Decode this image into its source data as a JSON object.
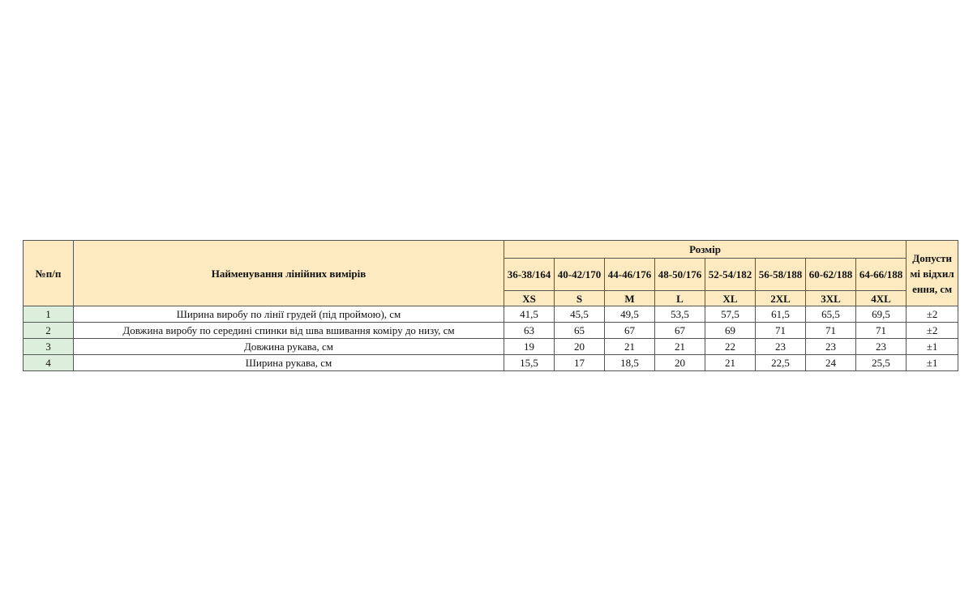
{
  "table": {
    "header": {
      "num": "№п/п",
      "name": "Найменування лінійних вимірів",
      "size_group": "Розмір",
      "tolerance": "Допустимі відхилення, см",
      "size_ranges": [
        "36-38/164",
        "40-42/170",
        "44-46/176",
        "48-50/176",
        "52-54/182",
        "56-58/188",
        "60-62/188",
        "64-66/188"
      ],
      "size_labels": [
        "XS",
        "S",
        "M",
        "L",
        "XL",
        "2XL",
        "3XL",
        "4XL"
      ]
    },
    "rows": [
      {
        "num": "1",
        "name": "Ширина виробу по лінії грудей (під проймою), см",
        "values": [
          "41,5",
          "45,5",
          "49,5",
          "53,5",
          "57,5",
          "61,5",
          "65,5",
          "69,5"
        ],
        "tolerance": "±2"
      },
      {
        "num": "2",
        "name": "Довжина виробу по середині спинки від шва вшивання коміру до низу, см",
        "values": [
          "63",
          "65",
          "67",
          "67",
          "69",
          "71",
          "71",
          "71"
        ],
        "tolerance": "±2"
      },
      {
        "num": "3",
        "name": "Довжина рукава, см",
        "values": [
          "19",
          "20",
          "21",
          "21",
          "22",
          "23",
          "23",
          "23"
        ],
        "tolerance": "±1"
      },
      {
        "num": "4",
        "name": "Ширина рукава, см",
        "values": [
          "15,5",
          "17",
          "18,5",
          "20",
          "21",
          "22,5",
          "24",
          "25,5"
        ],
        "tolerance": "±1"
      }
    ]
  },
  "colors": {
    "header_bg": "#fdeac0",
    "number_cell_bg": "#dcefdc",
    "border": "#555555"
  }
}
